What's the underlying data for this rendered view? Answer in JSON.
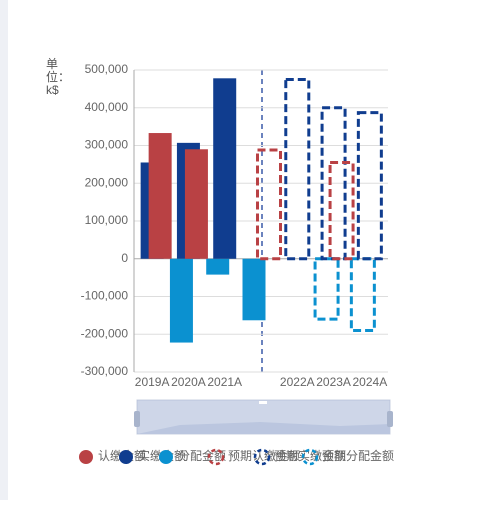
{
  "chart_data": {
    "type": "bar",
    "y_label": "单位：k$",
    "categories": [
      "2019A",
      "2020A",
      "2021A",
      null,
      "2022A",
      "2023A",
      "2024A"
    ],
    "series": [
      {
        "name": "认缴金额",
        "color": "#b94144",
        "dashed": false,
        "values": [
          333000,
          290000,
          null,
          null,
          null,
          null,
          null
        ]
      },
      {
        "name": "实缴金额",
        "color": "#103d8f",
        "dashed": false,
        "values": [
          255000,
          307000,
          478000,
          null,
          null,
          null,
          null
        ]
      },
      {
        "name": "分配金额",
        "color": "#0b91d0",
        "dashed": false,
        "values": [
          null,
          -222000,
          -42000,
          -163000,
          null,
          null,
          null
        ]
      },
      {
        "name": "预期认缴金额",
        "color": "#b94144",
        "dashed": true,
        "values": [
          null,
          null,
          null,
          288000,
          null,
          255000,
          null
        ]
      },
      {
        "name": "预期实缴金额",
        "color": "#103d8f",
        "dashed": true,
        "values": [
          null,
          null,
          null,
          null,
          475000,
          400000,
          387000
        ]
      },
      {
        "name": "预期分配金额",
        "color": "#0b91d0",
        "dashed": true,
        "values": [
          null,
          null,
          null,
          null,
          null,
          -160000,
          -190000
        ]
      }
    ],
    "ylim": [
      -300000,
      500000
    ],
    "yticks": [
      {
        "value": -300000,
        "label": "-300,000"
      },
      {
        "value": -200000,
        "label": "-200,000"
      },
      {
        "value": -100000,
        "label": "-100,000"
      },
      0,
      {
        "value": 100000,
        "label": "100,000"
      },
      {
        "value": 200000,
        "label": "200,000"
      },
      {
        "value": 300000,
        "label": "300,000"
      },
      {
        "value": 400000,
        "label": "400,000"
      },
      {
        "value": 500000,
        "label": "500,000"
      }
    ],
    "grid": true
  }
}
